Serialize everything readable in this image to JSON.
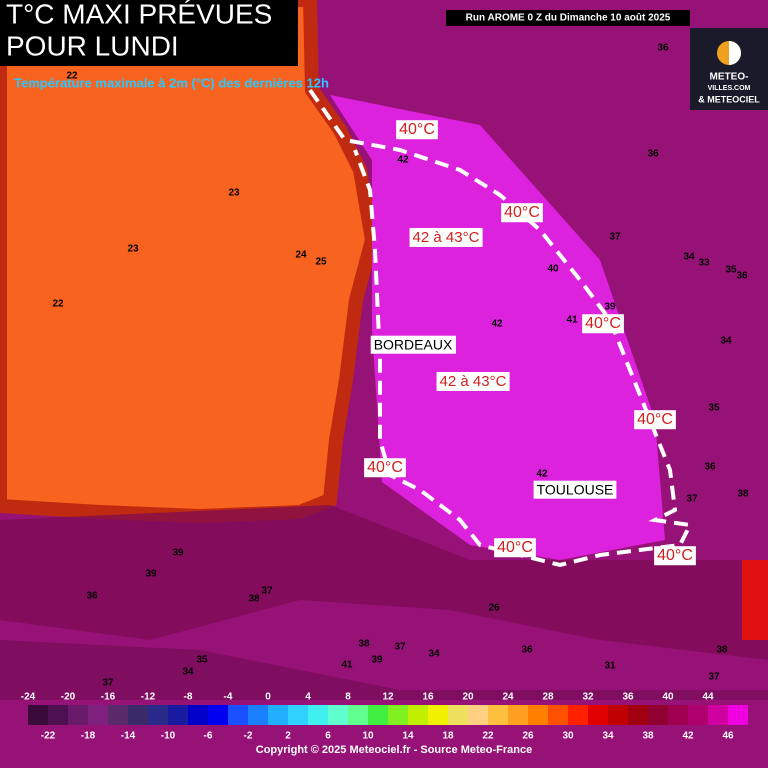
{
  "header": {
    "title": [
      "T°C MAXI PRÉVUES",
      "POUR LUNDI"
    ],
    "run": "Run AROME 0 Z du Dimanche 10 août 2025",
    "subtitle": "Température maximale à 2m (°C) des dernières 12h"
  },
  "logo": [
    "METEO-",
    "VILLES.COM",
    "& METEOCIEL"
  ],
  "isotherm_labels": [
    "40°C",
    "40°C",
    "40°C",
    "40°C",
    "40°C",
    "40°C",
    "40°C"
  ],
  "zone_labels": [
    "42 à 43°C",
    "42 à 43°C"
  ],
  "cities": [
    "BORDEAUX",
    "TOULOUSE"
  ],
  "point_values": [
    22,
    23,
    23,
    22,
    24,
    25,
    36,
    36,
    42,
    37,
    40,
    34,
    33,
    35,
    36,
    39,
    41,
    42,
    34,
    35,
    36,
    42,
    37,
    38,
    39,
    39,
    36,
    38,
    37,
    38,
    37,
    34,
    41,
    39,
    36,
    26,
    31,
    38,
    37,
    37,
    35,
    34
  ],
  "scale": {
    "top_labels": [
      -24,
      -20,
      -16,
      -12,
      -8,
      -4,
      0,
      4,
      8,
      12,
      16,
      20,
      24,
      28,
      32,
      36,
      40,
      44
    ],
    "bottom_labels": [
      -22,
      -18,
      -14,
      -10,
      -6,
      -2,
      2,
      6,
      10,
      14,
      18,
      22,
      26,
      30,
      34,
      38,
      42,
      46
    ],
    "colors": [
      "#3a0a3a",
      "#4d1050",
      "#6a1a6a",
      "#80207e",
      "#5a2a6a",
      "#3a2a6a",
      "#2a2a8a",
      "#1a1aa0",
      "#0000c8",
      "#0000f0",
      "#1a50ff",
      "#1a80ff",
      "#20b0ff",
      "#30d0ff",
      "#40f0f0",
      "#60ffd0",
      "#60ff90",
      "#40f040",
      "#80f020",
      "#c0f000",
      "#f0f000",
      "#f0e060",
      "#ffd080",
      "#ffc040",
      "#ffa020",
      "#ff8000",
      "#ff5000",
      "#ff2000",
      "#e00000",
      "#c00000",
      "#a00010",
      "#900030",
      "#a00050",
      "#b00070",
      "#d000a0",
      "#f000e0"
    ]
  },
  "footer": "Copyright © 2025 Meteociel.fr - Source Meteo-France"
}
